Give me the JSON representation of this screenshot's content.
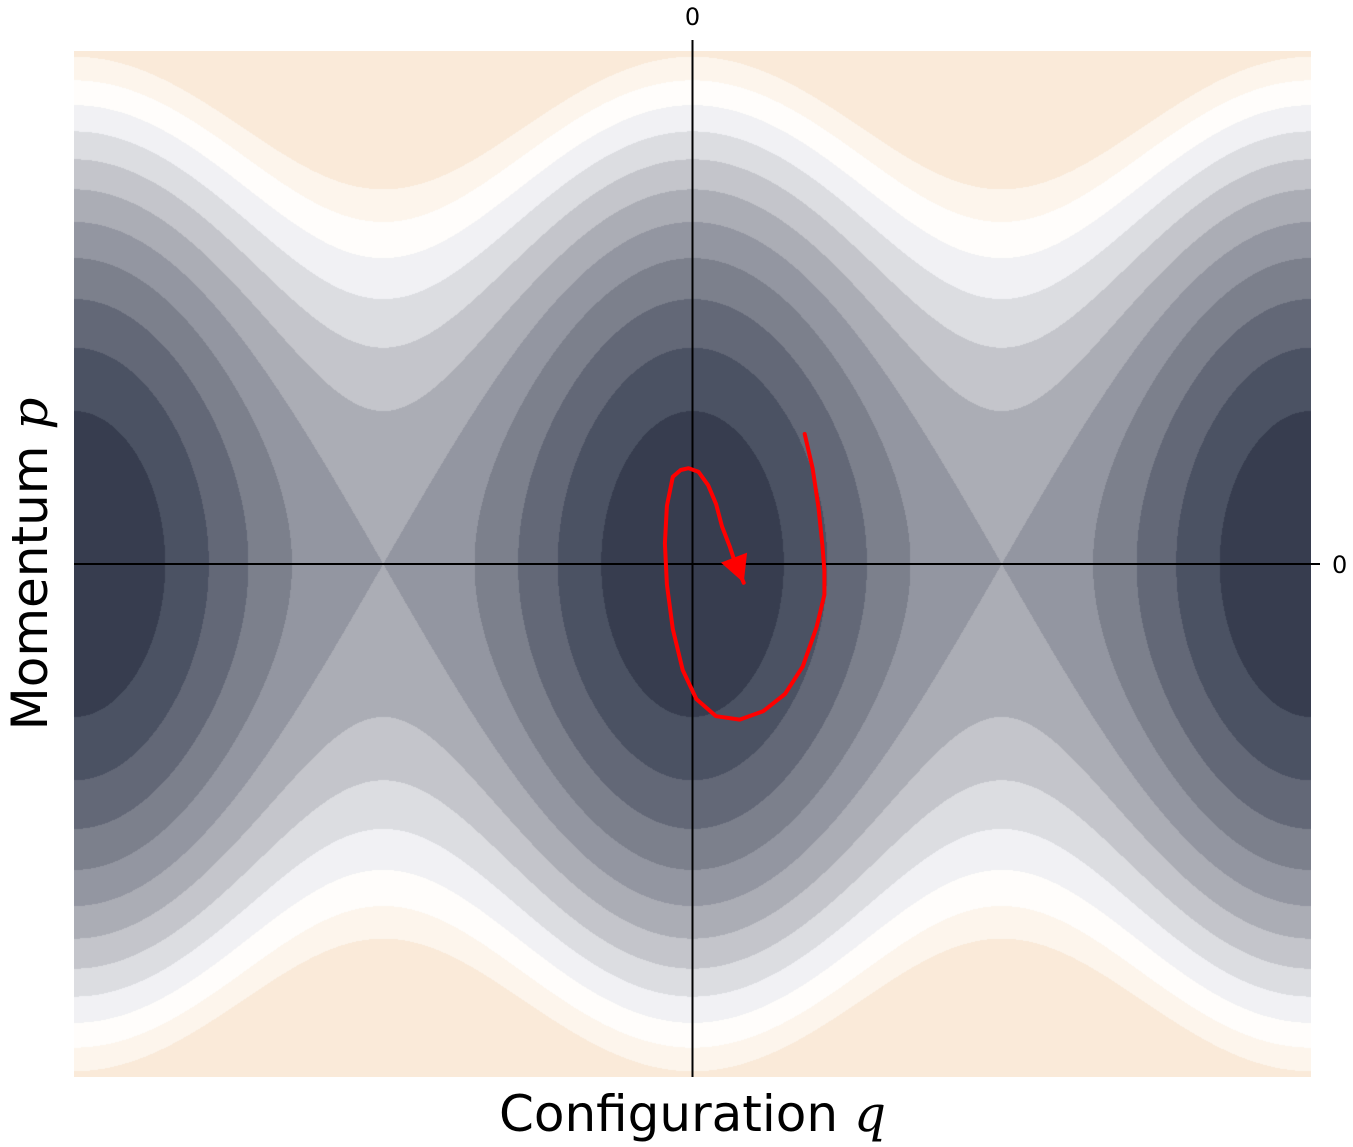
{
  "chart_data": {
    "type": "heatmap",
    "title": "",
    "xlabel": "Configuration",
    "xlabel_symbol": "q",
    "ylabel": "Momentum",
    "ylabel_symbol": "p",
    "xlim": [
      -3.14159,
      3.14159
    ],
    "ylim": [
      -3.0,
      3.0
    ],
    "x_ticks": [
      {
        "value": 0,
        "label": "0"
      }
    ],
    "y_ticks": [
      {
        "value": 0,
        "label": "0"
      }
    ],
    "grid": false,
    "legend": "none",
    "field": "H(q,p) = p^2/2 - cos(2q)",
    "contour_levels": [
      -1.0,
      -0.6,
      -0.2,
      0.2,
      0.6,
      1.0,
      1.4,
      1.8,
      2.2,
      2.6,
      3.0,
      3.4,
      3.8,
      4.2,
      5.2
    ],
    "colors": {
      "level_fills": [
        "#373d4f",
        "#4b5263",
        "#636877",
        "#7c808c",
        "#9396a1",
        "#abadb5",
        "#c4c5cb",
        "#dcdde1",
        "#f1f1f4",
        "#fffdfb",
        "#fdf5ec",
        "#faead9"
      ],
      "trajectory": "#ff0000",
      "axis": "#000000"
    },
    "series": [
      {
        "type": "trajectory",
        "x": [
          0.57,
          0.61,
          0.64,
          0.66,
          0.67,
          0.67,
          0.63,
          0.56,
          0.47,
          0.36,
          0.24,
          0.12,
          0.02,
          -0.05,
          -0.1,
          -0.13,
          -0.14,
          -0.13,
          -0.1,
          -0.06,
          -0.02,
          0.03,
          0.08,
          0.12,
          0.15,
          0.19,
          0.21,
          0.26
        ],
        "y": [
          0.76,
          0.56,
          0.33,
          0.11,
          -0.04,
          -0.18,
          -0.37,
          -0.6,
          -0.76,
          -0.86,
          -0.91,
          -0.89,
          -0.79,
          -0.62,
          -0.38,
          -0.12,
          0.12,
          0.34,
          0.51,
          0.55,
          0.56,
          0.54,
          0.46,
          0.35,
          0.22,
          0.1,
          0.03,
          -0.11
        ]
      }
    ]
  }
}
